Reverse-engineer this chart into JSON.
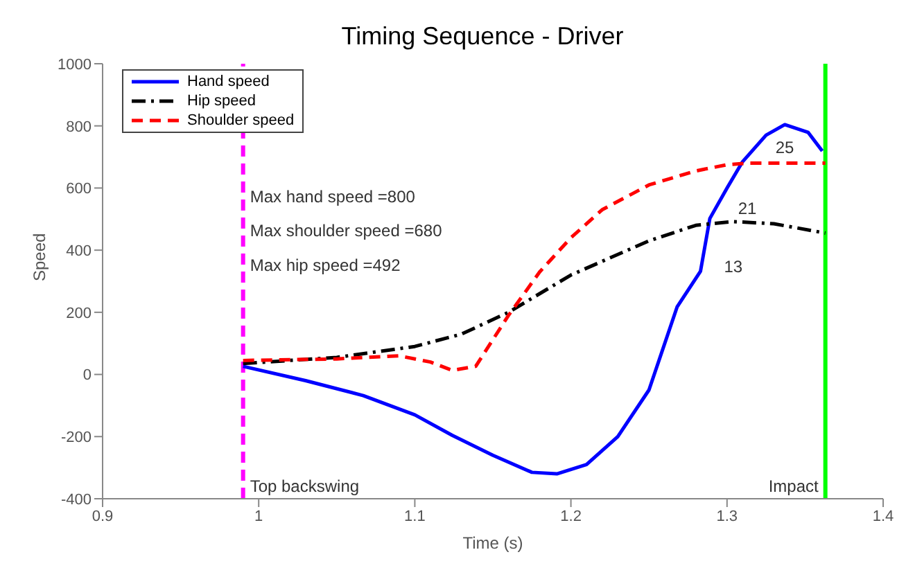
{
  "chart_data": {
    "type": "line",
    "title": "Timing Sequence - Driver",
    "xlabel": "Time (s)",
    "ylabel": "Speed",
    "xlim": [
      0.9,
      1.4
    ],
    "xticks": [
      0.9,
      1,
      1.1,
      1.2,
      1.3,
      1.4
    ],
    "ylim": [
      -400,
      1000
    ],
    "yticks": [
      -400,
      -200,
      0,
      200,
      400,
      600,
      800,
      1000
    ],
    "grid": false,
    "legend": "top left",
    "marker": "none",
    "series": [
      {
        "name": "Hand speed",
        "color": "#0000ff",
        "line_style": "solid",
        "x": [
          0.99,
          1.03,
          1.067,
          1.1,
          1.124,
          1.15,
          1.175,
          1.191,
          1.21,
          1.23,
          1.25,
          1.268,
          1.283,
          1.289,
          1.3,
          1.31,
          1.325,
          1.337,
          1.352,
          1.361
        ],
        "values": [
          26,
          -20,
          -68,
          -130,
          -196,
          -260,
          -315,
          -320,
          -290,
          -200,
          -50,
          217,
          332,
          502,
          600,
          685,
          770,
          804,
          779,
          719
        ]
      },
      {
        "name": "Hip speed",
        "color": "#000000",
        "line_style": "dashdot",
        "x": [
          0.99,
          1.05,
          1.1,
          1.13,
          1.16,
          1.2,
          1.25,
          1.28,
          1.304,
          1.33,
          1.363
        ],
        "values": [
          35,
          55,
          90,
          130,
          200,
          320,
          430,
          480,
          492,
          485,
          455
        ]
      },
      {
        "name": "Shoulder speed",
        "color": "#ff0000",
        "line_style": "dashed",
        "x": [
          0.99,
          1.05,
          1.09,
          1.11,
          1.124,
          1.139,
          1.16,
          1.18,
          1.2,
          1.22,
          1.25,
          1.28,
          1.3,
          1.313,
          1.363
        ],
        "values": [
          45,
          50,
          60,
          40,
          13,
          26,
          190,
          330,
          440,
          530,
          610,
          655,
          675,
          680,
          680
        ]
      }
    ],
    "ref_lines": [
      {
        "axis": "x",
        "value": 0.99,
        "label": "Top backswing",
        "color": "#ff00ff",
        "line_style": "dashed"
      },
      {
        "axis": "x",
        "value": 1.363,
        "label": "Impact",
        "color": "#00ff00",
        "line_style": "solid"
      }
    ],
    "annotations": [
      {
        "text": "Max hand speed =800",
        "x": 0.99,
        "y": 574
      },
      {
        "text": "Max shoulder speed =680",
        "x": 0.99,
        "y": 464
      },
      {
        "text": "Max hip speed =492",
        "x": 0.99,
        "y": 353
      },
      {
        "text": "13",
        "x": 1.304,
        "y": 492
      },
      {
        "text": "21",
        "x": 1.313,
        "y": 680
      },
      {
        "text": "25",
        "x": 1.337,
        "y": 804
      }
    ]
  }
}
